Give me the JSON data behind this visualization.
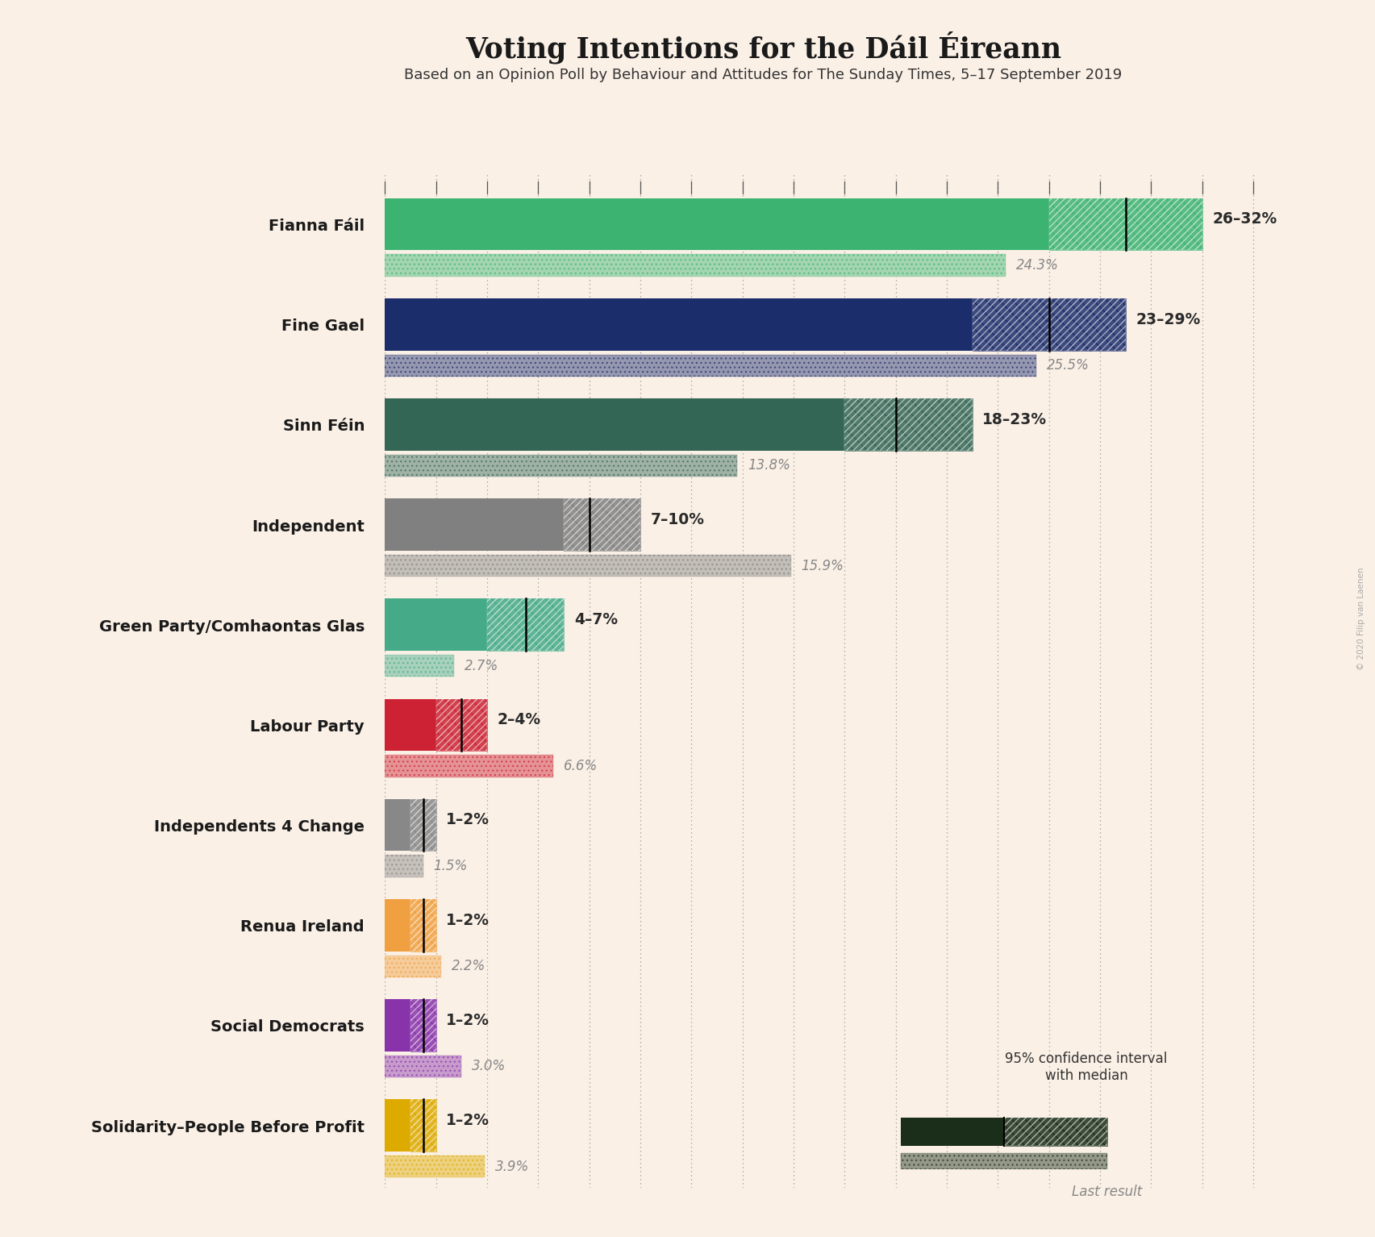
{
  "title": "Voting Intentions for the Dáil Éireann",
  "subtitle": "Based on an Opinion Poll by Behaviour and Attitudes for The Sunday Times, 5–17 September 2019",
  "watermark": "© 2020 Filip van Laenen",
  "background_color": "#faf0e6",
  "parties": [
    {
      "name": "Fianna Fáil",
      "ci_low": 26,
      "ci_high": 32,
      "median": 29,
      "last": 24.3,
      "color": "#3cb371",
      "label": "26–32%",
      "last_label": "24.3%"
    },
    {
      "name": "Fine Gael",
      "ci_low": 23,
      "ci_high": 29,
      "median": 26,
      "last": 25.5,
      "color": "#1c2d6b",
      "label": "23–29%",
      "last_label": "25.5%"
    },
    {
      "name": "Sinn Féin",
      "ci_low": 18,
      "ci_high": 23,
      "median": 20,
      "last": 13.8,
      "color": "#336655",
      "label": "18–23%",
      "last_label": "13.8%"
    },
    {
      "name": "Independent",
      "ci_low": 7,
      "ci_high": 10,
      "median": 8,
      "last": 15.9,
      "color": "#808080",
      "label": "7–10%",
      "last_label": "15.9%"
    },
    {
      "name": "Green Party/Comhaontas Glas",
      "ci_low": 4,
      "ci_high": 7,
      "median": 5.5,
      "last": 2.7,
      "color": "#44aa88",
      "label": "4–7%",
      "last_label": "2.7%"
    },
    {
      "name": "Labour Party",
      "ci_low": 2,
      "ci_high": 4,
      "median": 3,
      "last": 6.6,
      "color": "#cc2233",
      "label": "2–4%",
      "last_label": "6.6%"
    },
    {
      "name": "Independents 4 Change",
      "ci_low": 1,
      "ci_high": 2,
      "median": 1.5,
      "last": 1.5,
      "color": "#888888",
      "label": "1–2%",
      "last_label": "1.5%"
    },
    {
      "name": "Renua Ireland",
      "ci_low": 1,
      "ci_high": 2,
      "median": 1.5,
      "last": 2.2,
      "color": "#f0a040",
      "label": "1–2%",
      "last_label": "2.2%"
    },
    {
      "name": "Social Democrats",
      "ci_low": 1,
      "ci_high": 2,
      "median": 1.5,
      "last": 3.0,
      "color": "#8833aa",
      "label": "1–2%",
      "last_label": "3.0%"
    },
    {
      "name": "Solidarity–People Before Profit",
      "ci_low": 1,
      "ci_high": 2,
      "median": 1.5,
      "last": 3.9,
      "color": "#ddaa00",
      "label": "1–2%",
      "last_label": "3.9%"
    }
  ],
  "x_max": 35,
  "tick_interval": 2,
  "legend_text": "95% confidence interval\nwith median",
  "legend_last": "Last result",
  "legend_color": "#1a2e1a"
}
